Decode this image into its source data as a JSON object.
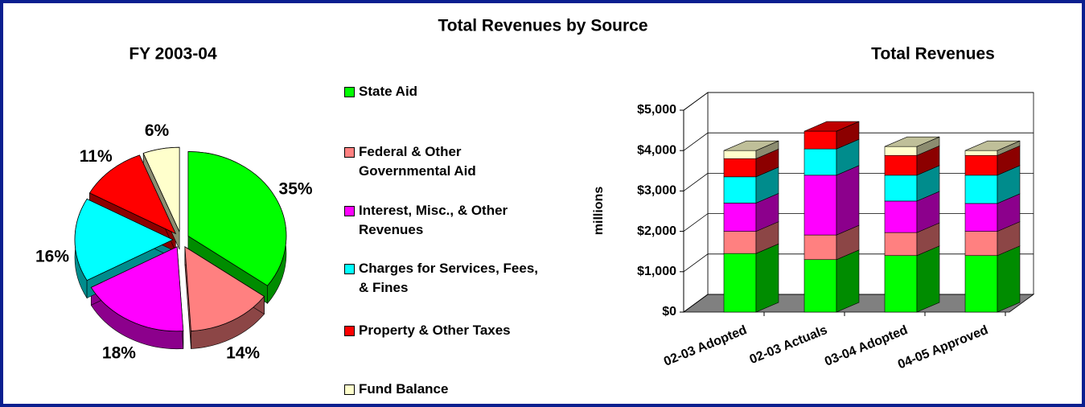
{
  "title": "Total Revenues by Source",
  "chart_data": [
    {
      "type": "pie",
      "title": "FY 2003-04",
      "categories": [
        "State Aid",
        "Federal & Other Governmental Aid",
        "Interest, Misc., & Other Revenues",
        "Charges for Services, Fees, & Fines",
        "Property & Other Taxes",
        "Fund Balance"
      ],
      "values": [
        35,
        14,
        18,
        16,
        11,
        6
      ],
      "value_labels": [
        "35%",
        "14%",
        "18%",
        "16%",
        "11%",
        "6%"
      ],
      "colors": [
        "#00ff00",
        "#ff8080",
        "#ff00ff",
        "#00ffff",
        "#ff0000",
        "#ffffcc"
      ]
    },
    {
      "type": "bar3d",
      "title": "Total Revenues",
      "ylabel": "millions",
      "categories": [
        "02-03 Adopted",
        "02-03 Actuals",
        "03-04 Adopted",
        "04-05 Approved"
      ],
      "series": [
        {
          "name": "State Aid",
          "color": "#00ff00",
          "values": [
            1450,
            1300,
            1400,
            1400
          ]
        },
        {
          "name": "Federal & Other Governmental Aid",
          "color": "#ff8080",
          "values": [
            550,
            610,
            570,
            600
          ]
        },
        {
          "name": "Interest, Misc., & Other Revenues",
          "color": "#ff00ff",
          "values": [
            700,
            1480,
            780,
            690
          ]
        },
        {
          "name": "Charges for Services, Fees, & Fines",
          "color": "#00ffff",
          "values": [
            650,
            650,
            640,
            700
          ]
        },
        {
          "name": "Property & Other Taxes",
          "color": "#ff0000",
          "values": [
            450,
            440,
            490,
            490
          ]
        },
        {
          "name": "Fund Balance",
          "color": "#ffffcc",
          "values": [
            200,
            0,
            220,
            120
          ]
        }
      ],
      "ylim": [
        0,
        5000
      ],
      "yticks": [
        {
          "value": 0,
          "label": "$0"
        },
        {
          "value": 1000,
          "label": "$1,000"
        },
        {
          "value": 2000,
          "label": "$2,000"
        },
        {
          "value": 3000,
          "label": "$3,000"
        },
        {
          "value": 4000,
          "label": "$4,000"
        },
        {
          "value": 5000,
          "label": "$5,000"
        }
      ],
      "grid": true
    }
  ]
}
